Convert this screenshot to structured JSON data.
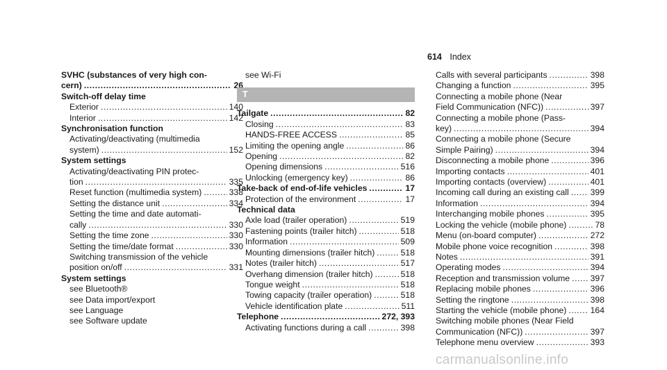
{
  "header": {
    "page_number": "614",
    "section": "Index"
  },
  "watermark": "carmanualsonline.info",
  "columns": [
    {
      "lines": [
        {
          "text": "SVHC (substances of very high con-",
          "bold": true
        },
        {
          "text": "cern)",
          "page": "26",
          "bold": true
        },
        {
          "text": "Switch-off delay time",
          "bold": true
        },
        {
          "text": "Exterior",
          "page": "140",
          "indent": true
        },
        {
          "text": "Interior",
          "page": "142",
          "indent": true
        },
        {
          "text": "Synchronisation function",
          "bold": true
        },
        {
          "text": "Activating/deactivating (multimedia",
          "indent": true
        },
        {
          "text": "system)",
          "page": "152",
          "indent": true
        },
        {
          "text": "System settings",
          "bold": true
        },
        {
          "text": "Activating/deactivating PIN protec-",
          "indent": true
        },
        {
          "text": "tion",
          "page": "335",
          "indent": true
        },
        {
          "text": "Reset function (multimedia system)",
          "page": "338",
          "indent": true
        },
        {
          "text": "Setting the distance unit",
          "page": "334",
          "indent": true
        },
        {
          "text": "Setting the time and date automati-",
          "indent": true
        },
        {
          "text": "cally",
          "page": "330",
          "indent": true
        },
        {
          "text": "Setting the time zone",
          "page": "330",
          "indent": true
        },
        {
          "text": "Setting the time/date format",
          "page": "330",
          "indent": true
        },
        {
          "text": "Switching transmission of the vehicle",
          "indent": true
        },
        {
          "text": "position on/off",
          "page": "331",
          "indent": true
        },
        {
          "text": "System settings",
          "bold": true
        },
        {
          "text": "see Bluetooth®",
          "indent": true
        },
        {
          "text": "see Data import/export",
          "indent": true
        },
        {
          "text": "see Language",
          "indent": true
        },
        {
          "text": "see Software update",
          "indent": true
        }
      ]
    },
    {
      "lines": [
        {
          "text": "see Wi-Fi",
          "indent": true
        },
        {
          "letter": "T"
        },
        {
          "text": "Tailgate",
          "page": "82",
          "bold": true
        },
        {
          "text": "Closing",
          "page": "83",
          "indent": true
        },
        {
          "text": "HANDS-FREE ACCESS",
          "page": "85",
          "indent": true
        },
        {
          "text": "Limiting the opening angle",
          "page": "86",
          "indent": true
        },
        {
          "text": "Opening",
          "page": "82",
          "indent": true
        },
        {
          "text": "Opening dimensions",
          "page": "516",
          "indent": true
        },
        {
          "text": "Unlocking (emergency key)",
          "page": "86",
          "indent": true
        },
        {
          "text": "Take-back of end-of-life vehicles",
          "page": "17",
          "bold": true
        },
        {
          "text": "Protection of the environment",
          "page": "17",
          "indent": true
        },
        {
          "text": "Technical data",
          "bold": true
        },
        {
          "text": "Axle load (trailer operation)",
          "page": "519",
          "indent": true
        },
        {
          "text": "Fastening points (trailer hitch)",
          "page": "518",
          "indent": true
        },
        {
          "text": "Information",
          "page": "509",
          "indent": true
        },
        {
          "text": "Mounting dimensions (trailer hitch)",
          "page": "518",
          "indent": true
        },
        {
          "text": "Notes (trailer hitch)",
          "page": "517",
          "indent": true
        },
        {
          "text": "Overhang dimension (trailer hitch)",
          "page": "518",
          "indent": true
        },
        {
          "text": "Tongue weight",
          "page": "518",
          "indent": true
        },
        {
          "text": "Towing capacity (trailer operation)",
          "page": "518",
          "indent": true
        },
        {
          "text": "Vehicle identification plate",
          "page": "511",
          "indent": true
        },
        {
          "text": "Telephone",
          "page": "272, 393",
          "bold": true
        },
        {
          "text": "Activating functions during a call",
          "page": "398",
          "indent": true
        }
      ]
    },
    {
      "lines": [
        {
          "text": "Calls with several participants",
          "page": "398",
          "indent": true
        },
        {
          "text": "Changing a function",
          "page": "395",
          "indent": true
        },
        {
          "text": "Connecting a mobile phone (Near",
          "indent": true
        },
        {
          "text": "Field Communication (NFC))",
          "page": "397",
          "indent": true
        },
        {
          "text": "Connecting a mobile phone (Pass-",
          "indent": true
        },
        {
          "text": "key)",
          "page": "394",
          "indent": true
        },
        {
          "text": "Connecting a mobile phone (Secure",
          "indent": true
        },
        {
          "text": "Simple Pairing)",
          "page": "394",
          "indent": true
        },
        {
          "text": "Disconnecting a mobile phone",
          "page": "396",
          "indent": true
        },
        {
          "text": "Importing contacts",
          "page": "401",
          "indent": true
        },
        {
          "text": "Importing contacts (overview)",
          "page": "401",
          "indent": true
        },
        {
          "text": "Incoming call during an existing call",
          "page": "399",
          "indent": true
        },
        {
          "text": "Information",
          "page": "394",
          "indent": true
        },
        {
          "text": "Interchanging mobile phones",
          "page": "395",
          "indent": true
        },
        {
          "text": "Locking the vehicle (mobile phone)",
          "page": "78",
          "indent": true
        },
        {
          "text": "Menu (on-board computer)",
          "page": "272",
          "indent": true
        },
        {
          "text": "Mobile phone voice recognition",
          "page": "398",
          "indent": true
        },
        {
          "text": "Notes",
          "page": "391",
          "indent": true
        },
        {
          "text": "Operating modes",
          "page": "394",
          "indent": true
        },
        {
          "text": "Reception and transmission volume",
          "page": "397",
          "indent": true
        },
        {
          "text": "Replacing mobile phones",
          "page": "396",
          "indent": true
        },
        {
          "text": "Setting the ringtone",
          "page": "398",
          "indent": true
        },
        {
          "text": "Starting the vehicle (mobile phone)",
          "page": "164",
          "indent": true
        },
        {
          "text": "Switching mobile phones (Near Field",
          "indent": true
        },
        {
          "text": "Communication (NFC))",
          "page": "397",
          "indent": true
        },
        {
          "text": "Telephone menu overview",
          "page": "393",
          "indent": true
        }
      ]
    }
  ]
}
